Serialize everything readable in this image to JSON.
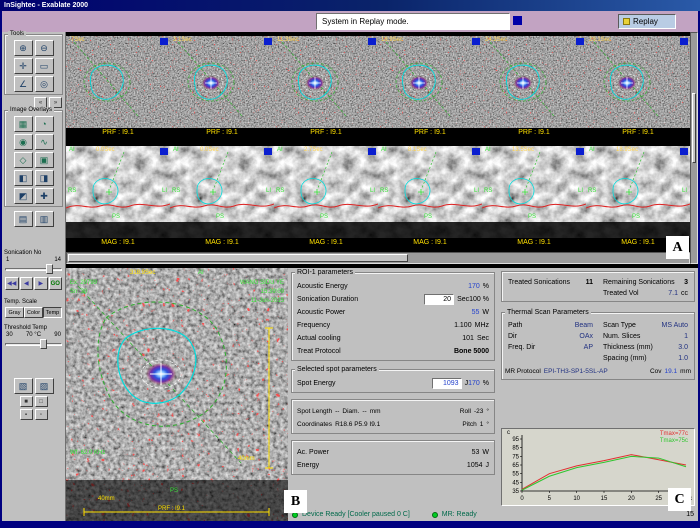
{
  "window": {
    "title": "InSightec - Exablate 2000"
  },
  "header": {
    "message": "System in Replay mode.",
    "replay_label": "Replay"
  },
  "sidebar": {
    "tools": {
      "label": "Tools",
      "buttons": [
        {
          "name": "zoom-in-tool",
          "glyph": "⊕"
        },
        {
          "name": "zoom-out-tool",
          "glyph": "⊖"
        },
        {
          "name": "pan-tool",
          "glyph": "✛"
        },
        {
          "name": "select-tool",
          "glyph": "▭"
        },
        {
          "name": "measure-tool",
          "glyph": "∠"
        },
        {
          "name": "annotate-tool",
          "glyph": "◎"
        }
      ],
      "mini": [
        {
          "glyph": "«"
        },
        {
          "glyph": "»"
        }
      ]
    },
    "overlays": {
      "label": "Image Overlays",
      "buttons": [
        {
          "name": "overlay-grid",
          "glyph": "▦"
        },
        {
          "name": "overlay-contour",
          "glyph": "◔"
        },
        {
          "name": "overlay-spot",
          "glyph": "◉"
        },
        {
          "name": "overlay-lines",
          "glyph": "∿"
        },
        {
          "name": "overlay-roi",
          "glyph": "◇"
        },
        {
          "name": "overlay-dose",
          "glyph": "▣"
        }
      ],
      "extra": [
        {
          "name": "overlay-a",
          "glyph": "◧"
        },
        {
          "name": "overlay-b",
          "glyph": "◨"
        },
        {
          "name": "overlay-c",
          "glyph": "◩"
        },
        {
          "name": "overlay-add",
          "glyph": "✚"
        }
      ]
    },
    "display_pair": [
      {
        "name": "display-single",
        "glyph": "▤"
      },
      {
        "name": "display-multi",
        "glyph": "▥"
      }
    ],
    "sonication": {
      "label": "Sonication No",
      "min": "1",
      "max": "14",
      "nav": [
        {
          "name": "first",
          "glyph": "◀◀"
        },
        {
          "name": "prev",
          "glyph": "◀"
        },
        {
          "name": "next",
          "glyph": "▶"
        }
      ],
      "go": "GO"
    },
    "temp_scale": {
      "label": "Temp. Scale",
      "options": [
        "Gray",
        "Color",
        "Temp"
      ]
    },
    "threshold": {
      "label": "Threshold Temp",
      "min": "30",
      "value": "70 °C",
      "max": "90"
    },
    "bottom_pair": [
      {
        "name": "capture",
        "glyph": "▧"
      },
      {
        "name": "film",
        "glyph": "▨"
      }
    ],
    "bottom_minis": [
      {
        "glyph": "■"
      },
      {
        "glyph": "□"
      },
      {
        "glyph": "▪"
      },
      {
        "glyph": "▫"
      }
    ]
  },
  "prf_row": {
    "frames": [
      {
        "time": "-7Sec",
        "label": "PRF : I9.1"
      },
      {
        "time": "3.1Sec",
        "label": "PRF : I9.1"
      },
      {
        "time": "11.3Sec",
        "label": "PRF : I9.1"
      },
      {
        "time": "18.9Sec",
        "label": "PRF : I9.1"
      },
      {
        "time": "24.3Sec",
        "label": "PRF : I9.1"
      },
      {
        "time": "29.1Sec",
        "label": "PRF : I9.1"
      }
    ]
  },
  "mag_row": {
    "orientation": {
      "top": "AI",
      "left": "RS",
      "right": "LI",
      "bottom": "PS"
    },
    "frames": [
      {
        "time": "0.0Sec",
        "label": "MAG : I9.1"
      },
      {
        "time": "0.0Sec",
        "label": "MAG : I9.1"
      },
      {
        "time": "2.7Sec",
        "label": "MAG : I9.1"
      },
      {
        "time": "8.1Sec",
        "label": "MAG : I9.1"
      },
      {
        "time": "13.5Sec",
        "label": "MAG : I9.1"
      },
      {
        "time": "18.9Sec",
        "label": "MAG : I9.1"
      }
    ]
  },
  "main_image": {
    "time": "318.9Sec",
    "exam": "Ex: 29799",
    "series": "Sn: 30",
    "patient": "WANG SIDU YE",
    "time_stamp": "15:39:09",
    "date_stamp": "11-Jun-2015",
    "freq_note": "Wf: 62.0 KHz",
    "orient_top": "AI",
    "orient_bottom": "PS",
    "scale_vertical": "40mm",
    "scale_horizontal": "40mm",
    "label": "PRF : I9.1"
  },
  "roi_panel": {
    "title": "ROI-1 parameters",
    "acoustic_energy": {
      "label": "Acoustic Energy",
      "value": "170",
      "unit": "%"
    },
    "sonication_duration": {
      "label": "Sonication Duration",
      "value": "20",
      "unit": "Sec",
      "pct": "100 %"
    },
    "acoustic_power": {
      "label": "Acoustic Power",
      "value": "55",
      "unit": "W"
    },
    "frequency": {
      "label": "Frequency",
      "value": "1.100",
      "unit": "MHz"
    },
    "actual_cooling": {
      "label": "Actual cooling",
      "value": "101",
      "unit": "Sec"
    },
    "treat_protocol": {
      "label": "Treat Protocol",
      "value": "Bone 5000"
    },
    "selected_title": "Selected spot parameters",
    "spot_energy": {
      "label": "Spot Energy",
      "value": "1093",
      "unit": "J",
      "pct": "170",
      "pct_unit": "%"
    },
    "spot_length": {
      "label": "Spot Length",
      "value": "--",
      "diam_label": "Diam.",
      "diam_value": "--",
      "diam_unit": "mm",
      "roll_label": "Roll",
      "roll_value": "-23",
      "roll_unit": "°"
    },
    "coordinates": {
      "label": "Coordinates",
      "value": "R18.6 P5.9 I9.1",
      "pitch_label": "Pitch",
      "pitch_value": "1",
      "pitch_unit": "°"
    },
    "ac_power": {
      "label": "Ac. Power",
      "value": "53",
      "unit": "W"
    },
    "energy": {
      "label": "Energy",
      "value": "1054",
      "unit": "J"
    }
  },
  "treat_panel": {
    "treated_sonications_label": "Treated Sonications",
    "treated_sonications": "11",
    "remaining_label": "Remaining Sonications",
    "remaining": "3",
    "treated_vol_label": "Treated Vol",
    "treated_vol": "7.1",
    "treated_vol_unit": "cc"
  },
  "thermal_panel": {
    "title": "Thermal Scan Parameters",
    "path_label": "Path",
    "path": "Beam",
    "dir_label": "Dir",
    "dir": "OAx",
    "freq_dir_label": "Freq. Dir",
    "freq_dir": "AP",
    "scan_type_label": "Scan Type",
    "scan_type": "MS Auto",
    "num_slices_label": "Num. Slices",
    "num_slices": "1",
    "thickness_label": "Thickness (mm)",
    "thickness": "3.0",
    "spacing_label": "Spacing (mm)",
    "spacing": "1.0",
    "mr_protocol_label": "MR Protocol",
    "mr_protocol": "EPI-TH3-SP1-5SL-AP",
    "cov_label": "Cov",
    "cov": "19.1",
    "cov_unit": "mm"
  },
  "chart_data": {
    "type": "line",
    "title": "Sonication temperature vs time",
    "ylabel": "c",
    "xlabel": "sec",
    "x": [
      0,
      5,
      10,
      15,
      20,
      25,
      30
    ],
    "xticks": [
      "0",
      "5",
      "10",
      "15",
      "20",
      "25",
      "30"
    ],
    "yticks": [
      "95",
      "85",
      "75",
      "65",
      "55",
      "45",
      "35"
    ],
    "xlim": [
      0,
      30
    ],
    "ylim": [
      35,
      95
    ],
    "grid": false,
    "legend_position": "top-right",
    "series": [
      {
        "name": "Tmax=77c",
        "color": "#e03030",
        "values": [
          37,
          55,
          64,
          70,
          77,
          71,
          65
        ]
      },
      {
        "name": "Tmax=75c",
        "color": "#2fc62f",
        "values": [
          36,
          52,
          62,
          68,
          75,
          73,
          63
        ]
      }
    ]
  },
  "status_bar": {
    "device_status": "Device Ready [Cooler paused 0 C]",
    "mr_status": "MR:  Ready",
    "right_value": "15"
  },
  "annotations": {
    "a_label": "A",
    "b_label": "B",
    "c_label": "C"
  }
}
